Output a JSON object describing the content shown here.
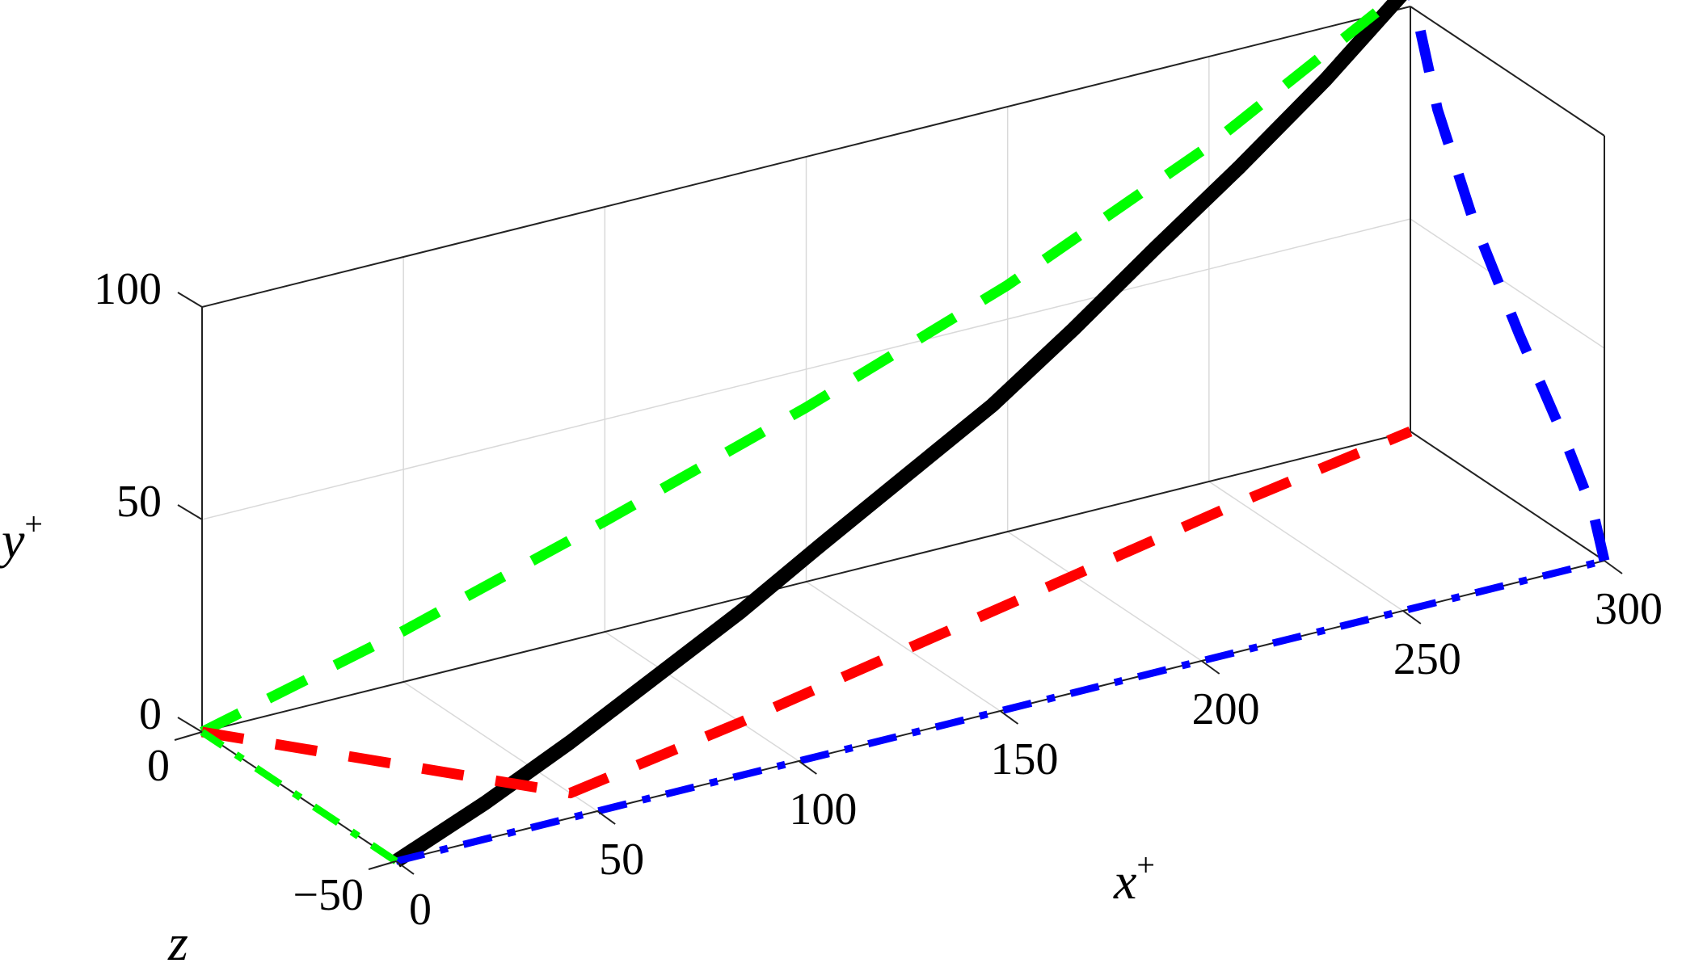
{
  "chart_data": {
    "type": "line3d",
    "x_label": {
      "base": "x",
      "sup": "+"
    },
    "y_label": {
      "base": "y",
      "sup": "+"
    },
    "z_label": {
      "base": "z",
      "sup": ""
    },
    "x_ticks": [
      "0",
      "50",
      "100",
      "150",
      "200",
      "250",
      "300"
    ],
    "y_ticks": [
      "0",
      "50",
      "100"
    ],
    "z_ticks": [
      "0",
      "−50"
    ],
    "xlim": [
      0,
      300
    ],
    "ylim": [
      0,
      100
    ],
    "zlim": [
      -50,
      0
    ],
    "grid": true,
    "view": "3d-perspective",
    "series": [
      {
        "id": "trajectory",
        "color": "#000000",
        "style": "solid",
        "points": [
          [
            0,
            0,
            -50
          ],
          [
            25,
            6,
            -47
          ],
          [
            50,
            12,
            -43
          ],
          [
            75,
            19,
            -39
          ],
          [
            100,
            26,
            -35
          ],
          [
            125,
            33,
            -30
          ],
          [
            150,
            41,
            -26
          ],
          [
            175,
            49,
            -22
          ],
          [
            200,
            58,
            -17
          ],
          [
            225,
            68,
            -12
          ],
          [
            250,
            79,
            -8
          ],
          [
            275,
            91,
            -4
          ],
          [
            300,
            105,
            0
          ]
        ]
      },
      {
        "id": "xy-projection",
        "color": "#00ff00",
        "style": "dashed",
        "points": [
          [
            0,
            0,
            0
          ],
          [
            50,
            12,
            0
          ],
          [
            100,
            26,
            0
          ],
          [
            150,
            41,
            0
          ],
          [
            200,
            58,
            0
          ],
          [
            250,
            79,
            0
          ],
          [
            300,
            105,
            0
          ]
        ]
      },
      {
        "id": "xz-projection",
        "color": "#ff0000",
        "style": "dashed",
        "points": [
          [
            0,
            0,
            0
          ],
          [
            50,
            0,
            -43
          ],
          [
            100,
            0,
            -35
          ],
          [
            150,
            0,
            -26
          ],
          [
            200,
            0,
            -17
          ],
          [
            250,
            0,
            -8
          ],
          [
            300,
            0,
            0
          ]
        ]
      },
      {
        "id": "x-direction-projection",
        "color": "#0000ff",
        "style": "dashdot",
        "points": [
          [
            0,
            0,
            -50
          ],
          [
            300,
            0,
            -50
          ]
        ]
      },
      {
        "id": "yz-projection",
        "color": "#0000ff",
        "style": "dashed",
        "points": [
          [
            300,
            0,
            -50
          ],
          [
            300,
            10,
            -47
          ],
          [
            300,
            22,
            -40
          ],
          [
            300,
            40,
            -28
          ],
          [
            300,
            60,
            -16
          ],
          [
            300,
            80,
            -7
          ],
          [
            300,
            105,
            0
          ]
        ]
      },
      {
        "id": "yz-origin-projection",
        "color": "#00ff00",
        "style": "dashdot",
        "points": [
          [
            0,
            0,
            -50
          ],
          [
            0,
            0,
            0
          ]
        ]
      }
    ]
  }
}
